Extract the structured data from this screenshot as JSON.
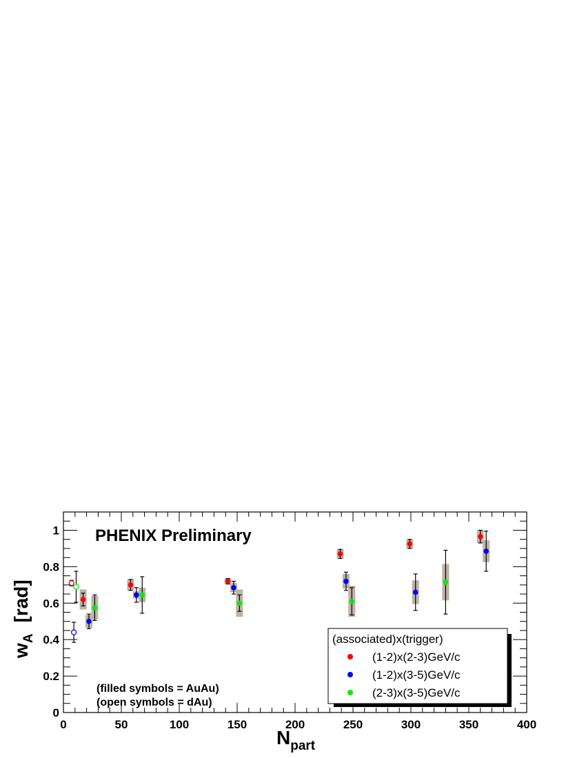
{
  "chart_data": {
    "type": "scatter",
    "title": "PHENIX Preliminary",
    "xlabel": "N",
    "xlabel_sub": "part",
    "ylabel": "w",
    "ylabel_sub": "A",
    "ylabel_unit": "[rad]",
    "xlim": [
      0,
      400
    ],
    "ylim": [
      0,
      1.1
    ],
    "x_ticks": [
      "0",
      "50",
      "100",
      "150",
      "200",
      "250",
      "300",
      "350",
      "400"
    ],
    "y_ticks": [
      "0",
      "0.2",
      "0.4",
      "0.6",
      "0.8",
      "1"
    ],
    "grid": false,
    "legend": {
      "header": "(associated)x(trigger)",
      "placement": "bottom-right",
      "entries": [
        "(1-2)x(2-3)GeV/c",
        "(1-2)x(3-5)GeV/c",
        "(2-3)x(3-5)GeV/c"
      ]
    },
    "notes": [
      "(filled symbols = AuAu)",
      "(open symbols = dAu)"
    ],
    "colors": {
      "series1": "#ff0000",
      "series2": "#0000ff",
      "series3": "#00ee00",
      "sys_band": "#bdb3a7"
    },
    "series": [
      {
        "name": "(1-2)x(2-3)GeV/c",
        "color": "#ff0000",
        "filled": [
          {
            "x": 17,
            "y": 0.62,
            "stat": 0.035,
            "sys": 0.055
          },
          {
            "x": 58,
            "y": 0.7,
            "stat": 0.03,
            "sys": 0.03
          },
          {
            "x": 142,
            "y": 0.72,
            "stat": 0.015,
            "sys": 0.015
          },
          {
            "x": 239,
            "y": 0.87,
            "stat": 0.025,
            "sys": 0.025
          },
          {
            "x": 299,
            "y": 0.925,
            "stat": 0.025,
            "sys": 0.025
          },
          {
            "x": 360,
            "y": 0.965,
            "stat": 0.035,
            "sys": 0.035
          }
        ],
        "open": [
          {
            "x": 7,
            "y": 0.71,
            "stat": 0.015,
            "sys": 0
          }
        ]
      },
      {
        "name": "(1-2)x(3-5)GeV/c",
        "color": "#0000ff",
        "filled": [
          {
            "x": 22,
            "y": 0.5,
            "stat": 0.04,
            "sys": 0.035
          },
          {
            "x": 63,
            "y": 0.645,
            "stat": 0.04,
            "sys": 0.02
          },
          {
            "x": 147,
            "y": 0.685,
            "stat": 0.035,
            "sys": 0.025
          },
          {
            "x": 244,
            "y": 0.72,
            "stat": 0.05,
            "sys": 0.04
          },
          {
            "x": 304,
            "y": 0.66,
            "stat": 0.1,
            "sys": 0.065
          },
          {
            "x": 365,
            "y": 0.885,
            "stat": 0.11,
            "sys": 0.06
          }
        ],
        "open": [
          {
            "x": 9,
            "y": 0.44,
            "stat": 0.055,
            "sys": 0
          }
        ]
      },
      {
        "name": "(2-3)x(3-5)GeV/c",
        "color": "#00ee00",
        "filled": [
          {
            "x": 27,
            "y": 0.575,
            "stat": 0.07,
            "sys": 0.065
          },
          {
            "x": 68,
            "y": 0.645,
            "stat": 0.1,
            "sys": 0.04
          },
          {
            "x": 152,
            "y": 0.6,
            "stat": 0.045,
            "sys": 0.075
          },
          {
            "x": 249,
            "y": 0.61,
            "stat": 0.075,
            "sys": 0.085
          },
          {
            "x": 330,
            "y": 0.715,
            "stat": 0.175,
            "sys": 0.1
          }
        ],
        "open": [
          {
            "x": 11,
            "y": 0.69,
            "stat": 0.085,
            "sys": 0
          }
        ]
      }
    ]
  }
}
